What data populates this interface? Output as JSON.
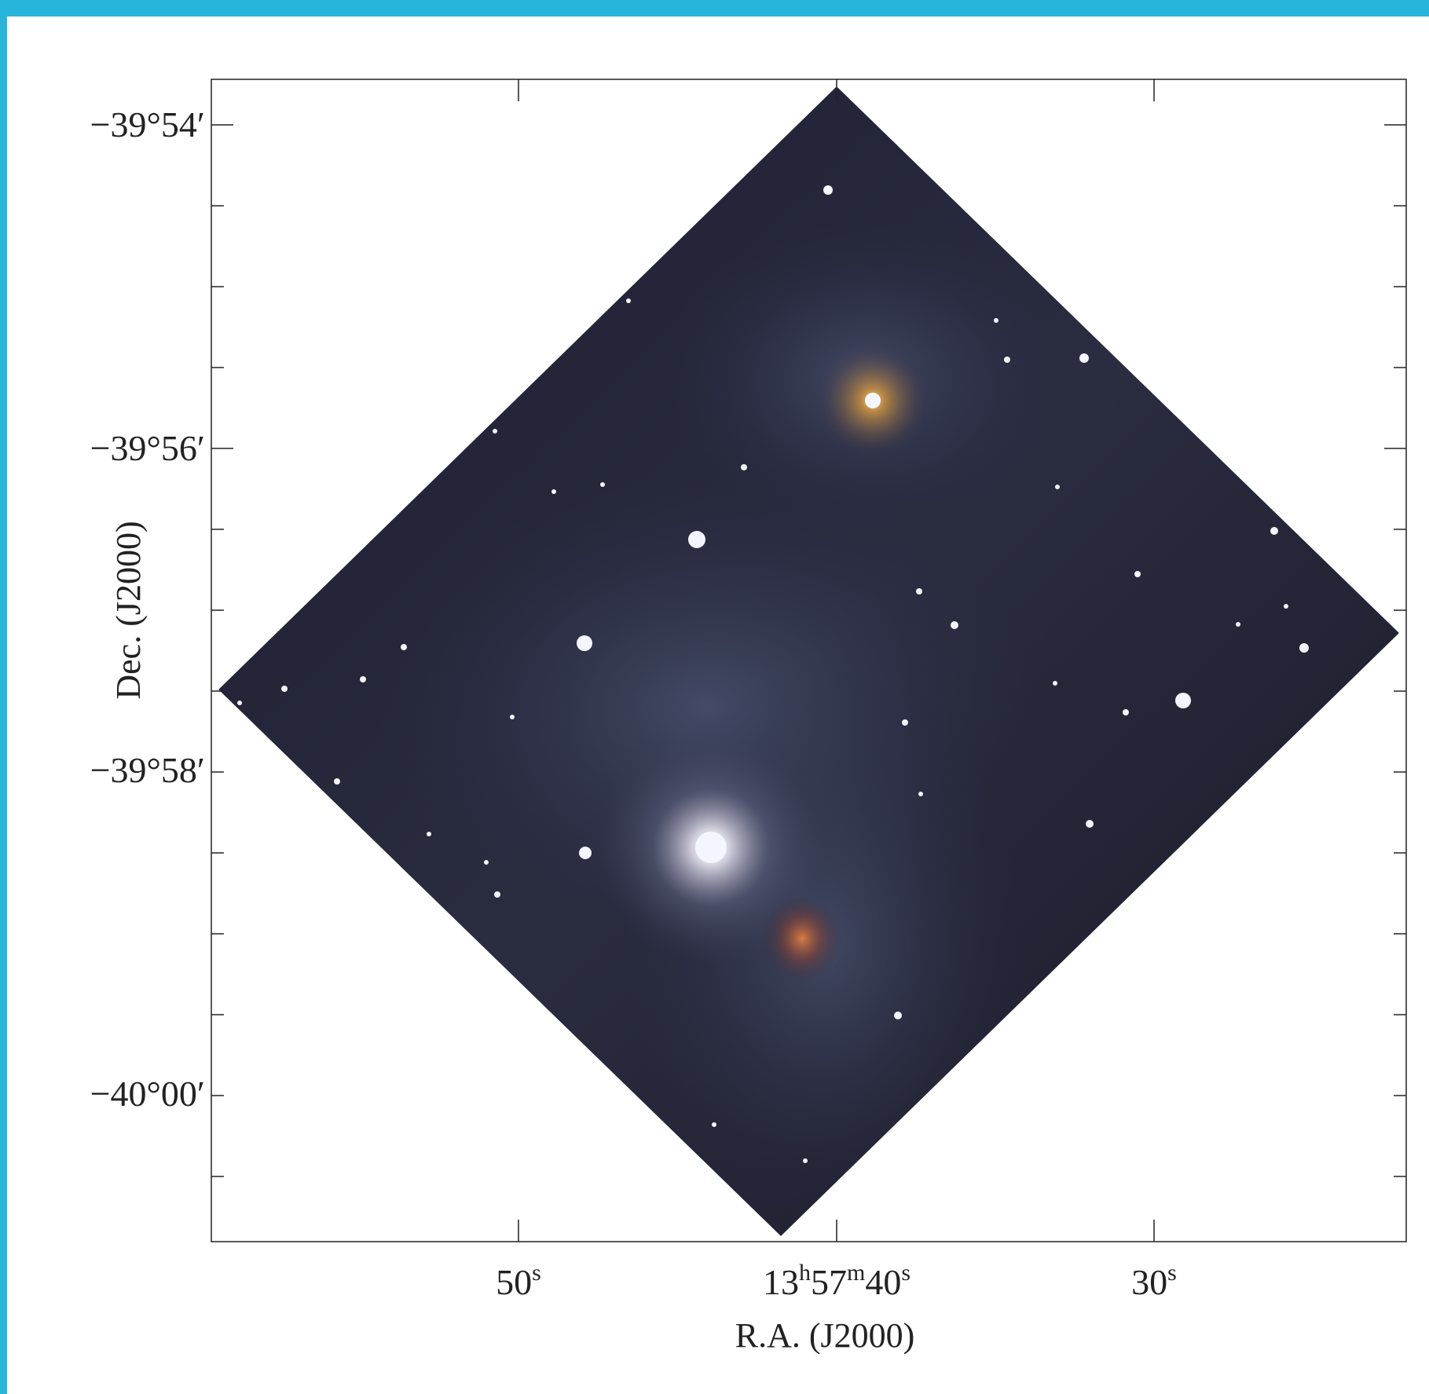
{
  "figure": {
    "y_axis": {
      "label": "Dec. (J2000)",
      "ticks": [
        "−39°54′",
        "−39°56′",
        "−39°58′",
        "−40°00′"
      ]
    },
    "x_axis": {
      "label": "R.A. (J2000)",
      "ticks": [
        {
          "parts": [
            "50",
            "s"
          ]
        },
        {
          "parts": [
            "13",
            "h",
            "57",
            "m",
            "40",
            "s"
          ]
        },
        {
          "parts": [
            "30",
            "s"
          ]
        }
      ]
    }
  }
}
